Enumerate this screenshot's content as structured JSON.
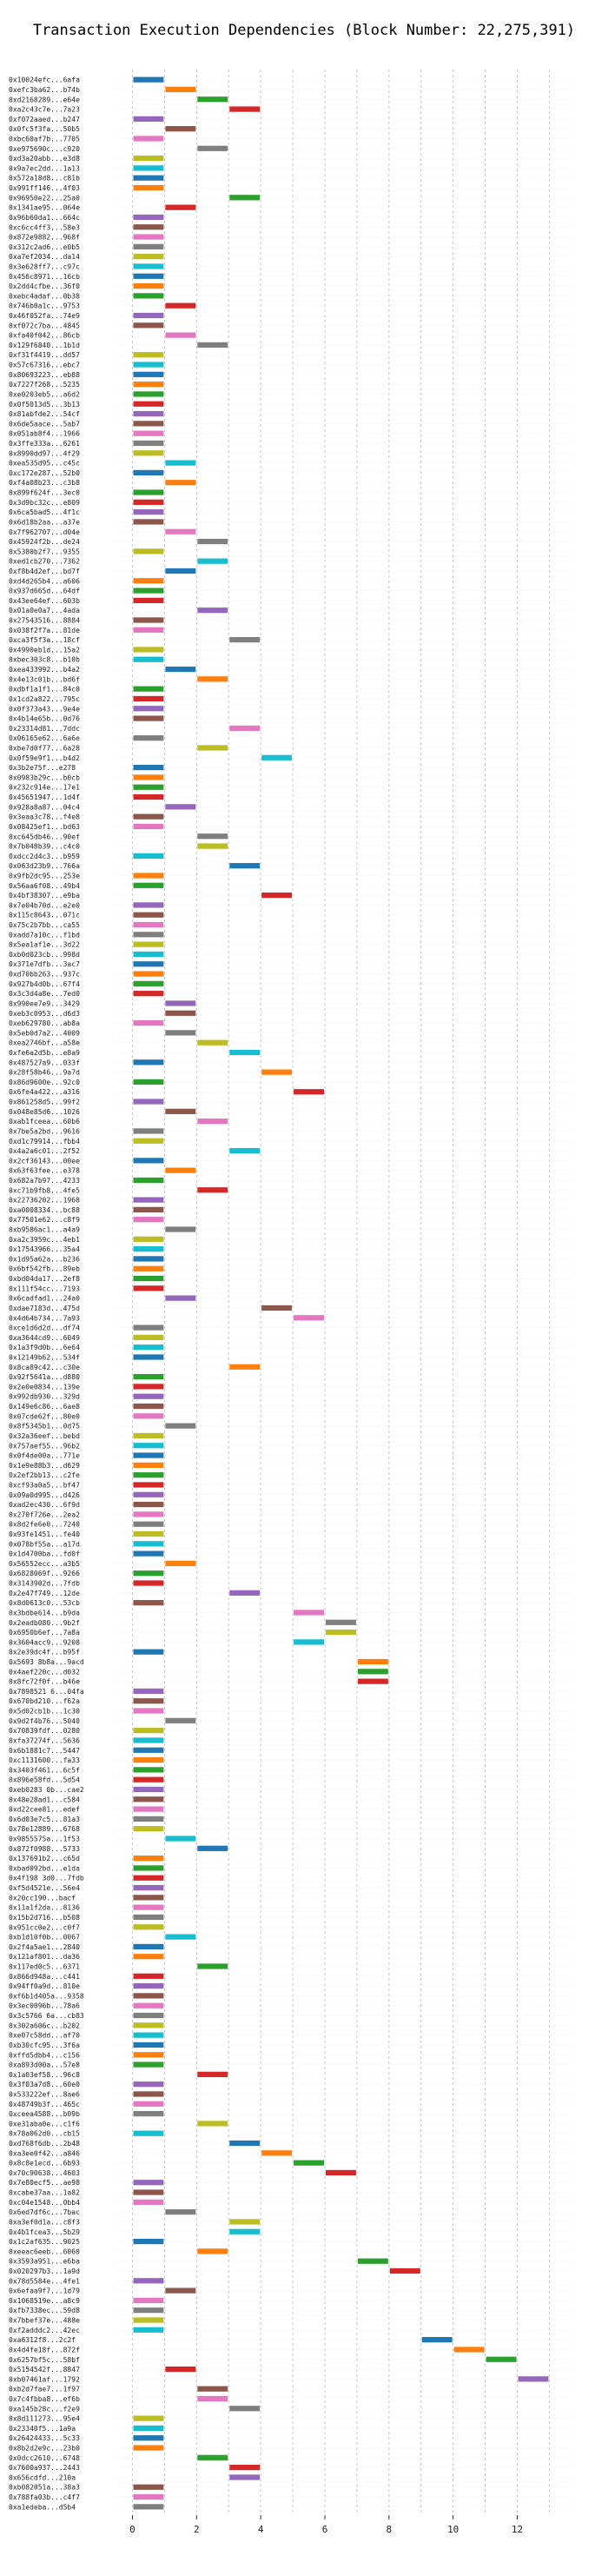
{
  "chart_data": {
    "type": "gantt",
    "title": "Transaction Execution Dependencies (Block Number: 22,275,391)",
    "x_ticks": [
      0,
      2,
      4,
      6,
      8,
      10,
      12
    ],
    "xlim": [
      -0.5,
      13.8
    ],
    "grid": "vertical dashed",
    "palette": [
      "#1f77b4",
      "#ff7f0e",
      "#2ca02c",
      "#d62728",
      "#9467bd",
      "#8c564b",
      "#e377c2",
      "#7f7f7f",
      "#bcbd22",
      "#17becf"
    ],
    "bar_width": 1,
    "rows": [
      {
        "tx": "0x10024efc...6afa",
        "start": 0
      },
      {
        "tx": "0xefc3ba62...b74b",
        "start": 1
      },
      {
        "tx": "0xd2168289...e64e",
        "start": 2
      },
      {
        "tx": "0xa2c43c7e...7a23",
        "start": 3
      },
      {
        "tx": "0xf072aaed...b247",
        "start": 0
      },
      {
        "tx": "0x0fc5f3fa...50b5",
        "start": 1
      },
      {
        "tx": "0xbc60af7b...7705",
        "start": 0
      },
      {
        "tx": "0xe975690c...c920",
        "start": 2
      },
      {
        "tx": "0xd3a20abb...e3d8",
        "start": 0
      },
      {
        "tx": "0x9a7ec2dd...1a13",
        "start": 0
      },
      {
        "tx": "0x572a18d8...c81b",
        "start": 0
      },
      {
        "tx": "0x991ff146...4f03",
        "start": 0
      },
      {
        "tx": "0x96950e22...25a0",
        "start": 3
      },
      {
        "tx": "0x1341ae95...064e",
        "start": 1
      },
      {
        "tx": "0x96b60da1...664c",
        "start": 0
      },
      {
        "tx": "0xc6cc4ff3...58e3",
        "start": 0
      },
      {
        "tx": "0x872e9882...968f",
        "start": 0
      },
      {
        "tx": "0x312c2ad6...e0b5",
        "start": 0
      },
      {
        "tx": "0xa7ef2034...da14",
        "start": 0
      },
      {
        "tx": "0x3e628ff7...c97c",
        "start": 0
      },
      {
        "tx": "0x456c8971...16cb",
        "start": 0
      },
      {
        "tx": "0x2dd4cfbe...36f0",
        "start": 0
      },
      {
        "tx": "0xebc4adaf...0b38",
        "start": 0
      },
      {
        "tx": "0x746b0a1c...9753",
        "start": 1
      },
      {
        "tx": "0x46f052fa...74e9",
        "start": 0
      },
      {
        "tx": "0xf072c7ba...4845",
        "start": 0
      },
      {
        "tx": "0xfa40f042...86cb",
        "start": 1
      },
      {
        "tx": "0x129f6840...1b1d",
        "start": 2
      },
      {
        "tx": "0xf31f4419...dd57",
        "start": 0
      },
      {
        "tx": "0x57c67316...ebc7",
        "start": 0
      },
      {
        "tx": "0x80693223...eb88",
        "start": 0
      },
      {
        "tx": "0x7227f268...5235",
        "start": 0
      },
      {
        "tx": "0xe0203eb5...a6d2",
        "start": 0
      },
      {
        "tx": "0x0f5013d5...3b13",
        "start": 0
      },
      {
        "tx": "0x81abfde2...54cf",
        "start": 0
      },
      {
        "tx": "0x6de5aace...5ab7",
        "start": 0
      },
      {
        "tx": "0x051ab8f4...1966",
        "start": 0
      },
      {
        "tx": "0x3ffe333a...6261",
        "start": 0
      },
      {
        "tx": "0x8990dd97...4f29",
        "start": 0
      },
      {
        "tx": "0xea535d95...c45c",
        "start": 1
      },
      {
        "tx": "0xc172e287...52b0",
        "start": 0
      },
      {
        "tx": "0xf4a08b23...c3b8",
        "start": 1
      },
      {
        "tx": "0x899f624f...3ec0",
        "start": 0
      },
      {
        "tx": "0x3d9bc32c...e809",
        "start": 0
      },
      {
        "tx": "0x6ca5bad5...4f1c",
        "start": 0
      },
      {
        "tx": "0x6d18b2aa...a37e",
        "start": 0
      },
      {
        "tx": "0x7f962707...d04e",
        "start": 1
      },
      {
        "tx": "0x45924f2b...de24",
        "start": 2
      },
      {
        "tx": "0x5380b2f7...9355",
        "start": 0
      },
      {
        "tx": "0xed1cb270...7362",
        "start": 2
      },
      {
        "tx": "0xf8b4d2ef...bd7f",
        "start": 1
      },
      {
        "tx": "0xd4d265b4...a606",
        "start": 0
      },
      {
        "tx": "0x937d665d...64df",
        "start": 0
      },
      {
        "tx": "0x43ee64ef...603b",
        "start": 0
      },
      {
        "tx": "0x01a0e0a7...4ada",
        "start": 2
      },
      {
        "tx": "0x27543516...8884",
        "start": 0
      },
      {
        "tx": "0x038f2f7a...81de",
        "start": 0
      },
      {
        "tx": "0xca3f5f3a...18cf",
        "start": 3
      },
      {
        "tx": "0x4990eb1d...15a2",
        "start": 0
      },
      {
        "tx": "0xbec303c8...b10b",
        "start": 0
      },
      {
        "tx": "0xea433992...b4a2",
        "start": 1
      },
      {
        "tx": "0x4e13c01b...bd6f",
        "start": 2
      },
      {
        "tx": "0xdbf1a1f1...84c0",
        "start": 0
      },
      {
        "tx": "0x1cd2a822...795c",
        "start": 0
      },
      {
        "tx": "0x0f373a43...9e4e",
        "start": 0
      },
      {
        "tx": "0x4b14e65b...0d76",
        "start": 0
      },
      {
        "tx": "0x23314d81...7ddc",
        "start": 3
      },
      {
        "tx": "0x06165e62...6a6e",
        "start": 0
      },
      {
        "tx": "0xbe7d0f77...6a28",
        "start": 2
      },
      {
        "tx": "0x0f59e9f1...b4d2",
        "start": 4
      },
      {
        "tx": "0x3b2e75f...e278",
        "start": 0
      },
      {
        "tx": "0x0983b29c...b0cb",
        "start": 0
      },
      {
        "tx": "0x232c914e...17e1",
        "start": 0
      },
      {
        "tx": "0x45651947...1d4f",
        "start": 0
      },
      {
        "tx": "0x928a8a87...04c4",
        "start": 1
      },
      {
        "tx": "0x3eaa3c78...f4e8",
        "start": 0
      },
      {
        "tx": "0x08425ef1...bd63",
        "start": 0
      },
      {
        "tx": "0xc645db46...90ef",
        "start": 2
      },
      {
        "tx": "0x7b048b39...c4c0",
        "start": 2
      },
      {
        "tx": "0xdcc2d4c3...b959",
        "start": 0
      },
      {
        "tx": "0x063d23b9...766a",
        "start": 3
      },
      {
        "tx": "0x9fb2dc95...253e",
        "start": 0
      },
      {
        "tx": "0x56aa6f08...49b4",
        "start": 0
      },
      {
        "tx": "0x4bf38307...e9ba",
        "start": 4
      },
      {
        "tx": "0x7e04b70d...e2e0",
        "start": 0
      },
      {
        "tx": "0x115c8643...071c",
        "start": 0
      },
      {
        "tx": "0x75c2b7bb...ca55",
        "start": 0
      },
      {
        "tx": "0xadd7a10c...f1bd",
        "start": 0
      },
      {
        "tx": "0x5ea1af1e...3d22",
        "start": 0
      },
      {
        "tx": "0xb0d023cb...998d",
        "start": 0
      },
      {
        "tx": "0x371e7dfb...3ac7",
        "start": 0
      },
      {
        "tx": "0xd70bb263...937c",
        "start": 0
      },
      {
        "tx": "0x927b4d0b...67f4",
        "start": 0
      },
      {
        "tx": "0x3c3d4a8e...7ed0",
        "start": 0
      },
      {
        "tx": "0x990ee7e9...3429",
        "start": 1
      },
      {
        "tx": "0xeb3c0953...d6d3",
        "start": 1
      },
      {
        "tx": "0xeb629780...ab8a",
        "start": 0
      },
      {
        "tx": "0x5eb0d7a2...4009",
        "start": 1
      },
      {
        "tx": "0xea2746bf...a58e",
        "start": 2
      },
      {
        "tx": "0xfe6a2d5b...e8a9",
        "start": 3
      },
      {
        "tx": "0x487527a9...033f",
        "start": 0
      },
      {
        "tx": "0x28f58b46...9a7d",
        "start": 4
      },
      {
        "tx": "0x86d9600e...92c0",
        "start": 0
      },
      {
        "tx": "0x6fe4a422...a316",
        "start": 5
      },
      {
        "tx": "0x861258d5...99f2",
        "start": 0
      },
      {
        "tx": "0x048e85d6...1026",
        "start": 1
      },
      {
        "tx": "0xab1fceea...60b6",
        "start": 2
      },
      {
        "tx": "0x7be5a2bd...9616",
        "start": 0
      },
      {
        "tx": "0xd1c79914...fbb4",
        "start": 0
      },
      {
        "tx": "0x4a2a6c01...2f52",
        "start": 3
      },
      {
        "tx": "0x2cf36143...00ee",
        "start": 0
      },
      {
        "tx": "0x63f63fee...e378",
        "start": 1
      },
      {
        "tx": "0x682a7b97...4233",
        "start": 0
      },
      {
        "tx": "0xc71b9fb8...4fe5",
        "start": 2
      },
      {
        "tx": "0x22736202...1968",
        "start": 0
      },
      {
        "tx": "0xa0008334...bc88",
        "start": 0
      },
      {
        "tx": "0x77501e62...c8f9",
        "start": 0
      },
      {
        "tx": "0xb9586ac1...a4a9",
        "start": 1
      },
      {
        "tx": "0xa2c3959c...4eb1",
        "start": 0
      },
      {
        "tx": "0x17543966...35a4",
        "start": 0
      },
      {
        "tx": "0x1d95a62a...b236",
        "start": 0
      },
      {
        "tx": "0x6bf542fb...89eb",
        "start": 0
      },
      {
        "tx": "0xbd04da17...2ef8",
        "start": 0
      },
      {
        "tx": "0x111f54cc...7193",
        "start": 0
      },
      {
        "tx": "0x6cadfad1...24a0",
        "start": 1
      },
      {
        "tx": "0xdae7183d...475d",
        "start": 4
      },
      {
        "tx": "0x4d64b734...7a93",
        "start": 5
      },
      {
        "tx": "0xce1d6d2d...df74",
        "start": 0
      },
      {
        "tx": "0xa3644cd9...6049",
        "start": 0
      },
      {
        "tx": "0x1a3f9d0b...6e64",
        "start": 0
      },
      {
        "tx": "0x12149b62...534f",
        "start": 0
      },
      {
        "tx": "0x8ca89c42...c30e",
        "start": 3
      },
      {
        "tx": "0x92f5641a...d880",
        "start": 0
      },
      {
        "tx": "0x2e0e0834...139e",
        "start": 0
      },
      {
        "tx": "0x992db930...329d",
        "start": 0
      },
      {
        "tx": "0x149e6c86...6ae8",
        "start": 0
      },
      {
        "tx": "0x07cde62f...80e0",
        "start": 0
      },
      {
        "tx": "0x8f5345b1...0d75",
        "start": 1
      },
      {
        "tx": "0x32a36eef...bebd",
        "start": 0
      },
      {
        "tx": "0x757aef55...96b2",
        "start": 0
      },
      {
        "tx": "0x0f4de00a...771e",
        "start": 0
      },
      {
        "tx": "0x1e9e88b3...d629",
        "start": 0
      },
      {
        "tx": "0x2ef2bb13...c2fe",
        "start": 0
      },
      {
        "tx": "0xcf93a0a5...bf47",
        "start": 0
      },
      {
        "tx": "0x09a0d995...d426",
        "start": 0
      },
      {
        "tx": "0xad2ec430...6f9d",
        "start": 0
      },
      {
        "tx": "0x270f726e...2ea2",
        "start": 0
      },
      {
        "tx": "0x8d2fe6e0...7240",
        "start": 0
      },
      {
        "tx": "0x93fe1451...fe40",
        "start": 0
      },
      {
        "tx": "0x078bf55a...a17d",
        "start": 0
      },
      {
        "tx": "0x1d4700ba...fd0f",
        "start": 0
      },
      {
        "tx": "0x56552ecc...a3b5",
        "start": 1
      },
      {
        "tx": "0x6828069f...9266",
        "start": 0
      },
      {
        "tx": "0x3143902d...7fdb",
        "start": 0
      },
      {
        "tx": "0x2e47f749...12de",
        "start": 3
      },
      {
        "tx": "0x8d0613c0...53cb",
        "start": 0
      },
      {
        "tx": "0x3bdbe614...b9da",
        "start": 5
      },
      {
        "tx": "0x2eadb080...9b2f",
        "start": 6
      },
      {
        "tx": "0x6950b6ef...7a8a",
        "start": 6
      },
      {
        "tx": "0x3604acc9...9208",
        "start": 5
      },
      {
        "tx": "0x2e39dc4f...b95f",
        "start": 0
      },
      {
        "tx": "0x5693 8b8a...9acd",
        "start": 7
      },
      {
        "tx": "0x4aef220c...d032",
        "start": 7
      },
      {
        "tx": "0x8fc72f0f...b46e",
        "start": 7
      },
      {
        "tx": "0x7898521 6...04fa",
        "start": 0
      },
      {
        "tx": "0x670bd210...f62a",
        "start": 0
      },
      {
        "tx": "0x5d02cb1b...1c30",
        "start": 0
      },
      {
        "tx": "0x9d2f4b76...5040",
        "start": 1
      },
      {
        "tx": "0x70839fdf...0280",
        "start": 0
      },
      {
        "tx": "0xfa37274f...5636",
        "start": 0
      },
      {
        "tx": "0x6b1881c7...5447",
        "start": 0
      },
      {
        "tx": "0xc1131600...fa33",
        "start": 0
      },
      {
        "tx": "0x3403f461...6c5f",
        "start": 0
      },
      {
        "tx": "0x896e58fd...5d54",
        "start": 0
      },
      {
        "tx": "0xeb0283 0b...cae2",
        "start": 0
      },
      {
        "tx": "0x48e28ad1...c584",
        "start": 0
      },
      {
        "tx": "0xd22cee81...edef",
        "start": 0
      },
      {
        "tx": "0x6d03e7c5...81a3",
        "start": 0
      },
      {
        "tx": "0x78e12889...6768",
        "start": 0
      },
      {
        "tx": "0x9855575a...1f53",
        "start": 1
      },
      {
        "tx": "0x872f0988...5733",
        "start": 2
      },
      {
        "tx": "0x137691b2...c65d",
        "start": 0
      },
      {
        "tx": "0xbad092bd...e1da",
        "start": 0
      },
      {
        "tx": "0x4f198 3d0...7fdb",
        "start": 0
      },
      {
        "tx": "0xf5d4521e...56e4",
        "start": 0
      },
      {
        "tx": "0x20cc190...bacf",
        "start": 0
      },
      {
        "tx": "0x11a1f2da...8136",
        "start": 0
      },
      {
        "tx": "0x15b2d716...b508",
        "start": 0
      },
      {
        "tx": "0x951cc0e2...c0f7",
        "start": 0
      },
      {
        "tx": "0xb1d10f0b...0067",
        "start": 1
      },
      {
        "tx": "0x2f4a5ae1...2840",
        "start": 0
      },
      {
        "tx": "0x121af801...da36",
        "start": 0
      },
      {
        "tx": "0x117ed0c5...6371",
        "start": 2
      },
      {
        "tx": "0x866d948a...c441",
        "start": 0
      },
      {
        "tx": "0x94ff0a9d...810e",
        "start": 0
      },
      {
        "tx": "0xf6b1d405a...9358",
        "start": 0
      },
      {
        "tx": "0x3ec0096b...78a6",
        "start": 0
      },
      {
        "tx": "0x3c5766 6a...cb83",
        "start": 0
      },
      {
        "tx": "0x302a606c...b202",
        "start": 0
      },
      {
        "tx": "0xe07c58dd...af70",
        "start": 0
      },
      {
        "tx": "0xb30cfc95...3f6a",
        "start": 0
      },
      {
        "tx": "0xffd5dbb4...c156",
        "start": 0
      },
      {
        "tx": "0xa893d00a...57e8",
        "start": 0
      },
      {
        "tx": "0x1a03ef58...96c8",
        "start": 2
      },
      {
        "tx": "0x3f03a7d8...60e0",
        "start": 0
      },
      {
        "tx": "0x533222ef...8ae6",
        "start": 0
      },
      {
        "tx": "0x48749b3f...465c",
        "start": 0
      },
      {
        "tx": "0xceea4588...b09b",
        "start": 0
      },
      {
        "tx": "0xe31aba0e...c1f6",
        "start": 2
      },
      {
        "tx": "0x78a062d0...cb15",
        "start": 0
      },
      {
        "tx": "0xd768f6db...2b48",
        "start": 3
      },
      {
        "tx": "0xa3ee0f42...a846",
        "start": 4
      },
      {
        "tx": "0x8c8e1ecd...6b93",
        "start": 5
      },
      {
        "tx": "0x70c90638...4603",
        "start": 6
      },
      {
        "tx": "0x7e80ecf5...ae98",
        "start": 0
      },
      {
        "tx": "0xcabe37aa...1a82",
        "start": 0
      },
      {
        "tx": "0xc04e1548...0bb4",
        "start": 0
      },
      {
        "tx": "0x6ed7df6c...7bac",
        "start": 1
      },
      {
        "tx": "0xa3ef0d1a...c8f3",
        "start": 3
      },
      {
        "tx": "0x4b1fcea3...5b29",
        "start": 3
      },
      {
        "tx": "0x1c2af635...9025",
        "start": 0
      },
      {
        "tx": "0xeeac6eeb...6060",
        "start": 2
      },
      {
        "tx": "0x3593a951...e6ba",
        "start": 7
      },
      {
        "tx": "0x020297b3...1a9d",
        "start": 8
      },
      {
        "tx": "0x78d5584e...4fe1",
        "start": 0
      },
      {
        "tx": "0x6efaa9f7...1d79",
        "start": 1
      },
      {
        "tx": "0x1068519e...a8c9",
        "start": 0
      },
      {
        "tx": "0xfb7338ec...59d8",
        "start": 0
      },
      {
        "tx": "0x7bbef37e...488e",
        "start": 0
      },
      {
        "tx": "0xf2adddc2...42ec",
        "start": 0
      },
      {
        "tx": "0xa6312f8...2c2f",
        "start": 9
      },
      {
        "tx": "0x4d4fe18f...872f",
        "start": 10
      },
      {
        "tx": "0x6257bf5c...58bf",
        "start": 11
      },
      {
        "tx": "0x5154542f...8847",
        "start": 1
      },
      {
        "tx": "0xb07461af...1792",
        "start": 12
      },
      {
        "tx": "0xb2d7fae7...1f97",
        "start": 2
      },
      {
        "tx": "0x7c4fbba8...ef6b",
        "start": 2
      },
      {
        "tx": "0xa145b28c...f2e9",
        "start": 3
      },
      {
        "tx": "0x8d111273...95e4",
        "start": 0
      },
      {
        "tx": "0x23340f5...1a9a",
        "start": 0
      },
      {
        "tx": "0x26424433...5c33",
        "start": 0
      },
      {
        "tx": "0x8b2d2e9c...23b0",
        "start": 0
      },
      {
        "tx": "0x0dcc2610...6748",
        "start": 2
      },
      {
        "tx": "0x7600a937...2443",
        "start": 3
      },
      {
        "tx": "0x656cdfd...210a",
        "start": 3
      },
      {
        "tx": "0xb082051a...38a3",
        "start": 0
      },
      {
        "tx": "0x788fa03b...c4f7",
        "start": 0
      },
      {
        "tx": "0xa1edeba...d5b4",
        "start": 0
      }
    ]
  }
}
